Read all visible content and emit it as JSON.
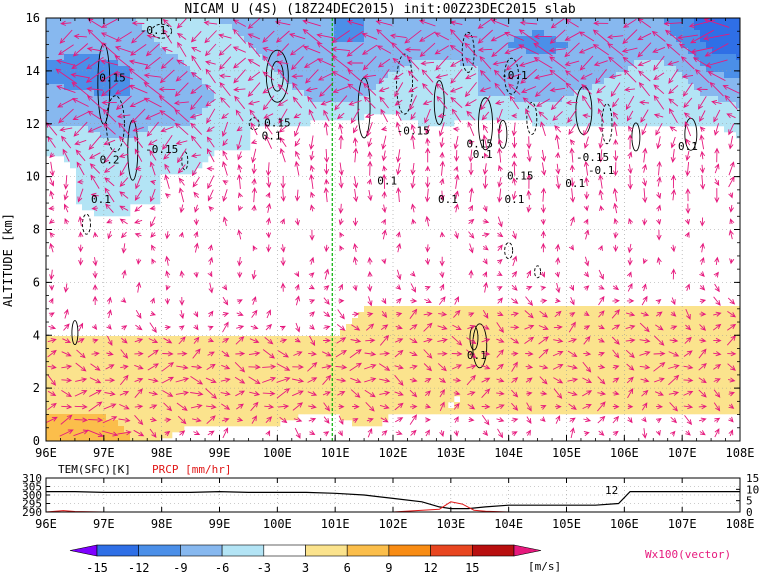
{
  "title": "NICAM U (4S) (18Z24DEC2015) init:00Z23DEC2015 slab",
  "colors": {
    "shade_neg": [
      "#7f00ff",
      "#2f6fe6",
      "#4b8fe8",
      "#87b8ef",
      "#b3e4f5"
    ],
    "shade_pos": [
      "#fbe38d",
      "#fbbe4b",
      "#f88c14",
      "#e84620",
      "#b80f0f"
    ],
    "vector": "#e6197d",
    "contour": "#000000",
    "grid": "#9a9a9a",
    "marker": "#00b000",
    "tem_line": "#000000",
    "prcp_line": "#e01818"
  },
  "chart_data": [
    {
      "type": "heatmap",
      "title": "NICAM U (4S) (18Z24DEC2015) init:00Z23DEC2015 slab",
      "xlabel": "",
      "ylabel": "ALTITUDE [km]",
      "xlim": [
        96,
        108
      ],
      "ylim": [
        0,
        16
      ],
      "x_ticks": [
        "96E",
        "97E",
        "98E",
        "99E",
        "100E",
        "101E",
        "102E",
        "103E",
        "104E",
        "105E",
        "106E",
        "107E",
        "108E"
      ],
      "y_ticks": [
        "0",
        "2",
        "4",
        "6",
        "8",
        "10",
        "12",
        "14",
        "16"
      ],
      "grid": true,
      "marker_line_lon": 100.95,
      "u_field": {
        "lon": [
          96,
          96.5,
          97,
          97.5,
          98,
          98.5,
          99,
          99.5,
          100,
          100.5,
          101,
          101.5,
          102,
          102.5,
          103,
          103.5,
          104,
          104.5,
          105,
          105.5,
          106,
          106.5,
          107,
          107.5,
          108
        ],
        "alt": [
          0,
          1,
          2,
          3,
          4,
          5,
          6,
          7,
          8,
          9,
          10,
          11,
          12,
          13,
          14,
          15,
          16
        ],
        "values": [
          [
            8,
            9,
            8,
            6,
            3,
            2,
            1,
            1,
            1,
            1,
            1,
            2,
            2,
            1,
            1,
            1,
            1,
            1,
            1,
            1,
            1,
            1,
            1,
            1,
            1
          ],
          [
            6,
            6,
            6,
            5,
            4,
            4,
            4,
            4,
            4,
            3,
            3,
            4,
            3,
            3,
            3,
            3,
            3,
            3,
            3,
            3,
            3,
            3,
            3,
            3,
            3
          ],
          [
            4,
            5,
            5,
            5,
            5,
            6,
            6,
            6,
            6,
            5,
            5,
            5,
            4,
            4,
            3,
            3,
            4,
            4,
            4,
            4,
            4,
            4,
            4,
            4,
            4
          ],
          [
            4,
            4,
            5,
            5,
            5,
            5,
            5,
            5,
            6,
            6,
            6,
            5,
            5,
            5,
            4,
            4,
            4,
            4,
            4,
            4,
            4,
            5,
            5,
            5,
            4
          ],
          [
            3,
            3,
            3,
            3,
            3,
            3,
            3,
            3,
            3,
            3,
            3,
            4,
            5,
            4,
            4,
            5,
            5,
            4,
            4,
            4,
            4,
            4,
            4,
            4,
            3
          ],
          [
            1,
            1,
            1,
            1,
            1,
            2,
            2,
            2,
            2,
            2,
            2,
            3,
            3,
            3,
            3,
            3,
            3,
            3,
            3,
            3,
            3,
            3,
            3,
            3,
            3
          ],
          [
            0,
            0,
            0,
            0,
            0,
            0,
            0,
            0,
            0,
            1,
            1,
            1,
            1,
            1,
            1,
            1,
            1,
            2,
            2,
            2,
            1,
            1,
            1,
            1,
            1
          ],
          [
            0,
            0,
            0,
            0,
            0,
            0,
            0,
            0,
            0,
            0,
            0,
            0,
            0,
            0,
            1,
            1,
            1,
            1,
            1,
            0,
            0,
            0,
            0,
            0,
            0
          ],
          [
            -1,
            -1,
            -2,
            -3,
            -1,
            0,
            0,
            0,
            0,
            0,
            0,
            0,
            0,
            0,
            1,
            3,
            2,
            1,
            1,
            0,
            0,
            0,
            0,
            0,
            0
          ],
          [
            -3,
            -3,
            -4,
            -3,
            -3,
            -2,
            -1,
            0,
            0,
            0,
            0,
            0,
            0,
            0,
            0,
            0,
            0,
            0,
            0,
            0,
            0,
            0,
            0,
            0,
            0
          ],
          [
            3,
            -3,
            -4,
            -3,
            -3,
            -3,
            -2,
            -1,
            0,
            0,
            0,
            0,
            0,
            0,
            0,
            0,
            0,
            0,
            0,
            0,
            0,
            0,
            0,
            3,
            3
          ],
          [
            -4,
            -4,
            -5,
            -5,
            -4,
            -4,
            -3,
            -3,
            -2,
            -1,
            0,
            0,
            0,
            -1,
            -1,
            0,
            0,
            0,
            0,
            0,
            0,
            0,
            0,
            -1,
            -2
          ],
          [
            -6,
            -6,
            -7,
            -7,
            -6,
            -6,
            -4,
            -3,
            -3,
            -3,
            -2,
            -2,
            -2,
            -3,
            -3,
            -2,
            -2,
            -3,
            -3,
            -3,
            -3,
            -3,
            -3,
            -3,
            -4
          ],
          [
            -8,
            -8,
            -9,
            -9,
            -8,
            -7,
            -6,
            -5,
            -5,
            -6,
            -7,
            -6,
            -5,
            -5,
            -5,
            -6,
            -6,
            -7,
            -6,
            -5,
            -4,
            -4,
            -5,
            -6,
            -7
          ],
          [
            -10,
            -11,
            -10,
            -9,
            -7,
            -6,
            -5,
            -5,
            -6,
            -7,
            -8,
            -7,
            -6,
            -5,
            -5,
            -6,
            -7,
            -8,
            -8,
            -7,
            -6,
            -5,
            -6,
            -9,
            -10
          ],
          [
            -7,
            -8,
            -8,
            -7,
            -6,
            -5,
            -5,
            -6,
            -7,
            -8,
            -9,
            -9,
            -8,
            -7,
            -7,
            -8,
            -9,
            -10,
            -9,
            -8,
            -7,
            -7,
            -9,
            -13,
            -14
          ],
          [
            -6,
            -6,
            -7,
            -6,
            -5,
            -5,
            -6,
            -7,
            -8,
            -8,
            -9,
            -9,
            -8,
            -8,
            -7,
            -7,
            -8,
            -8,
            -7,
            -6,
            -6,
            -8,
            -11,
            -15,
            -14
          ]
        ]
      },
      "contour_labels": [
        {
          "text": "-0.1",
          "lon": 97.85,
          "alt": 15.4
        },
        {
          "text": "0.15",
          "lon": 97.15,
          "alt": 13.6
        },
        {
          "text": "0.15",
          "lon": 100.0,
          "alt": 11.9
        },
        {
          "text": "0.1",
          "lon": 99.9,
          "alt": 11.4
        },
        {
          "text": "-0.15",
          "lon": 98.0,
          "alt": 10.9
        },
        {
          "text": "0.2",
          "lon": 97.1,
          "alt": 10.5
        },
        {
          "text": "0.1",
          "lon": 96.95,
          "alt": 9.0
        },
        {
          "text": "-0.15",
          "lon": 102.35,
          "alt": 11.6
        },
        {
          "text": "0.1",
          "lon": 101.9,
          "alt": 9.7
        },
        {
          "text": "0.1",
          "lon": 102.95,
          "alt": 9.0
        },
        {
          "text": "-0.1",
          "lon": 104.1,
          "alt": 13.7
        },
        {
          "text": "0.15",
          "lon": 103.5,
          "alt": 11.1
        },
        {
          "text": "0.1",
          "lon": 103.55,
          "alt": 10.7
        },
        {
          "text": "0.15",
          "lon": 104.2,
          "alt": 9.9
        },
        {
          "text": "0.1",
          "lon": 104.1,
          "alt": 9.0
        },
        {
          "text": "-0.15",
          "lon": 105.45,
          "alt": 10.6
        },
        {
          "text": "-0.1",
          "lon": 105.6,
          "alt": 10.1
        },
        {
          "text": "0.1",
          "lon": 105.15,
          "alt": 9.6
        },
        {
          "text": "0.1",
          "lon": 107.1,
          "alt": 11.0
        },
        {
          "text": "0.1",
          "lon": 103.45,
          "alt": 3.1
        }
      ],
      "vectors_note": "Wx100(vector)"
    },
    {
      "type": "line",
      "title": "",
      "xlim": [
        96,
        108
      ],
      "x_ticks": [
        "96E",
        "97E",
        "98E",
        "99E",
        "100E",
        "101E",
        "102E",
        "103E",
        "104E",
        "105E",
        "106E",
        "107E",
        "108E"
      ],
      "left_axis_label": "TEM(SFC)[K]",
      "right_axis_label": "PRCP [mm/hr]",
      "left_ticks": [
        "310",
        "305",
        "300",
        "295",
        "290"
      ],
      "right_ticks": [
        "15",
        "10",
        "5",
        "0"
      ],
      "left_ylim": [
        290,
        310
      ],
      "right_ylim": [
        0,
        15
      ],
      "series": [
        {
          "name": "TEM(SFC)[K]",
          "x": [
            96,
            96.5,
            97,
            97.5,
            98,
            98.5,
            99,
            99.5,
            100,
            100.5,
            101,
            101.5,
            102,
            102.5,
            102.8,
            103.0,
            103.3,
            103.6,
            104,
            104.5,
            105,
            105.5,
            105.9,
            106.1,
            106.5,
            107,
            107.5,
            108
          ],
          "values": [
            302,
            302,
            301.5,
            301.5,
            301.5,
            301.5,
            302,
            301.5,
            301.5,
            301.5,
            301,
            300,
            298,
            296,
            293,
            292,
            292,
            293,
            294,
            294,
            294,
            294,
            295,
            302,
            302,
            302,
            302,
            302
          ]
        },
        {
          "name": "PRCP [mm/hr]",
          "x": [
            96,
            96.3,
            96.5,
            97,
            99,
            101,
            102,
            102.8,
            103.0,
            103.2,
            103.4,
            103.6,
            104,
            106,
            108
          ],
          "values": [
            0,
            0.6,
            0.2,
            0,
            0,
            0,
            0,
            1.2,
            4.5,
            3.5,
            0.8,
            0.3,
            0,
            0,
            0
          ]
        }
      ],
      "annotation": "12"
    }
  ],
  "legend": {
    "labels": [
      "-15",
      "-12",
      "-9",
      "-6",
      "-3",
      "3",
      "6",
      "9",
      "12",
      "15"
    ],
    "unit": "[m/s]",
    "vector_label": "Wx100(vector)"
  }
}
